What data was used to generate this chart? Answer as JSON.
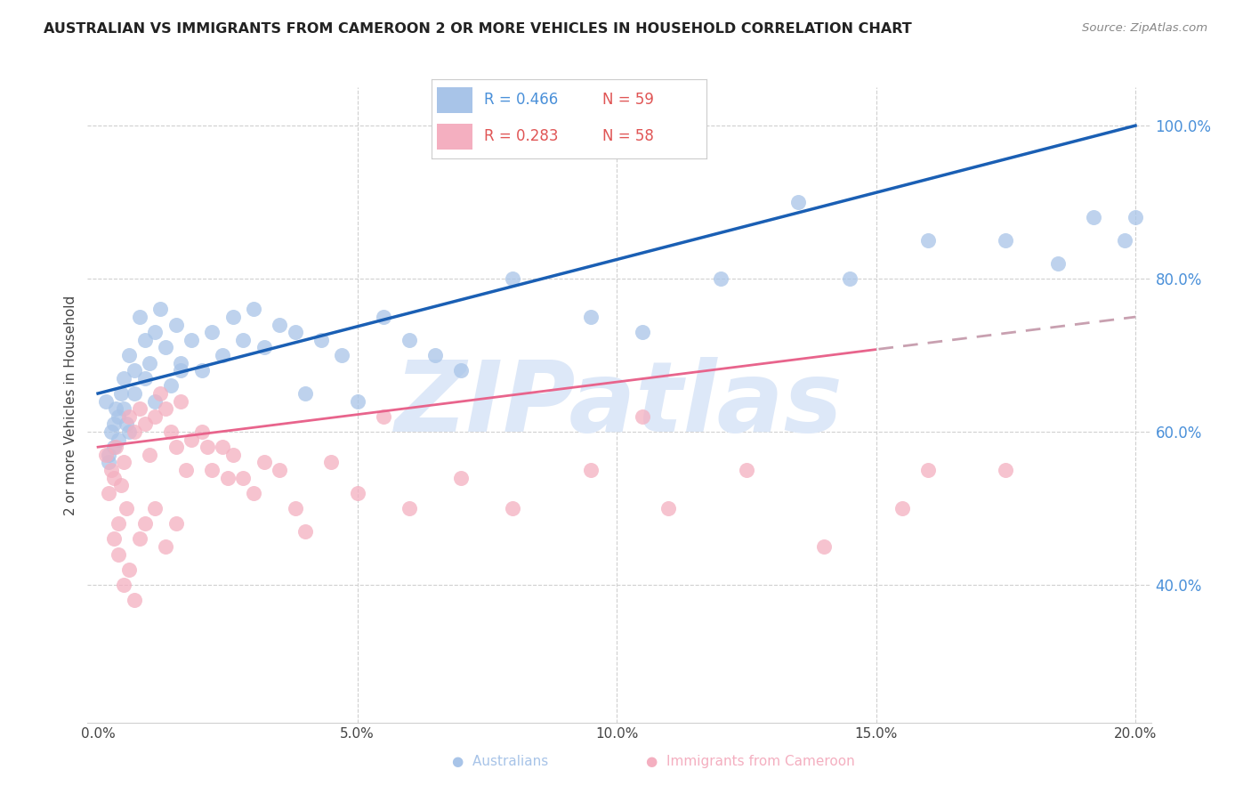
{
  "title": "AUSTRALIAN VS IMMIGRANTS FROM CAMEROON 2 OR MORE VEHICLES IN HOUSEHOLD CORRELATION CHART",
  "source": "Source: ZipAtlas.com",
  "ylabel": "2 or more Vehicles in Household",
  "xlim": [
    -0.2,
    20.3
  ],
  "ylim": [
    22,
    105
  ],
  "right_yticks": [
    40.0,
    60.0,
    80.0,
    100.0
  ],
  "xticks": [
    0,
    5,
    10,
    15,
    20
  ],
  "xtick_labels": [
    "0.0%",
    "5.0%",
    "10.0%",
    "15.0%",
    "20.0%"
  ],
  "blue_scatter_color": "#a8c4e8",
  "pink_scatter_color": "#f4afc0",
  "blue_line_color": "#1a5fb4",
  "pink_line_color": "#e8648c",
  "pink_dash_color": "#c8a0b0",
  "watermark_color": "#dde8f8",
  "legend_r1": "R = 0.466",
  "legend_n1": "N = 59",
  "legend_r2": "R = 0.283",
  "legend_n2": "N = 58",
  "blue_intercept": 65.0,
  "blue_slope": 1.75,
  "pink_intercept": 58.0,
  "pink_slope": 0.85,
  "australian_x": [
    0.15,
    0.2,
    0.25,
    0.3,
    0.35,
    0.4,
    0.45,
    0.5,
    0.55,
    0.6,
    0.7,
    0.8,
    0.9,
    1.0,
    1.1,
    1.2,
    1.3,
    1.5,
    1.6,
    1.8,
    2.0,
    2.2,
    2.4,
    2.6,
    2.8,
    3.0,
    3.2,
    3.5,
    3.8,
    4.0,
    4.3,
    4.7,
    5.0,
    5.5,
    6.0,
    6.5,
    7.0,
    8.0,
    9.5,
    10.5,
    12.0,
    13.5,
    14.5,
    16.0,
    17.5,
    18.5,
    19.2,
    19.8,
    20.0,
    0.2,
    0.3,
    0.4,
    0.5,
    0.6,
    0.7,
    0.9,
    1.1,
    1.4,
    1.6
  ],
  "australian_y": [
    64,
    57,
    60,
    58,
    63,
    62,
    65,
    67,
    61,
    70,
    68,
    75,
    72,
    69,
    73,
    76,
    71,
    74,
    69,
    72,
    68,
    73,
    70,
    75,
    72,
    76,
    71,
    74,
    73,
    65,
    72,
    70,
    64,
    75,
    72,
    70,
    68,
    80,
    75,
    73,
    80,
    90,
    80,
    85,
    85,
    82,
    88,
    85,
    88,
    56,
    61,
    59,
    63,
    60,
    65,
    67,
    64,
    66,
    68
  ],
  "cameroon_x": [
    0.15,
    0.2,
    0.25,
    0.3,
    0.35,
    0.4,
    0.45,
    0.5,
    0.55,
    0.6,
    0.7,
    0.8,
    0.9,
    1.0,
    1.1,
    1.2,
    1.3,
    1.4,
    1.5,
    1.6,
    1.8,
    2.0,
    2.2,
    2.4,
    2.6,
    2.8,
    3.0,
    3.2,
    3.5,
    3.8,
    4.0,
    4.5,
    5.0,
    5.5,
    6.0,
    7.0,
    8.0,
    9.5,
    10.5,
    11.0,
    12.5,
    14.0,
    15.5,
    16.0,
    17.5,
    0.3,
    0.4,
    0.5,
    0.6,
    0.7,
    0.8,
    0.9,
    1.1,
    1.3,
    1.5,
    1.7,
    2.1,
    2.5
  ],
  "cameroon_y": [
    57,
    52,
    55,
    54,
    58,
    48,
    53,
    56,
    50,
    62,
    60,
    63,
    61,
    57,
    62,
    65,
    63,
    60,
    58,
    64,
    59,
    60,
    55,
    58,
    57,
    54,
    52,
    56,
    55,
    50,
    47,
    56,
    52,
    62,
    50,
    54,
    50,
    55,
    62,
    50,
    55,
    45,
    50,
    55,
    55,
    46,
    44,
    40,
    42,
    38,
    46,
    48,
    50,
    45,
    48,
    55,
    58,
    54
  ],
  "blue_label": "Australians",
  "pink_label": "Immigrants from Cameroon"
}
